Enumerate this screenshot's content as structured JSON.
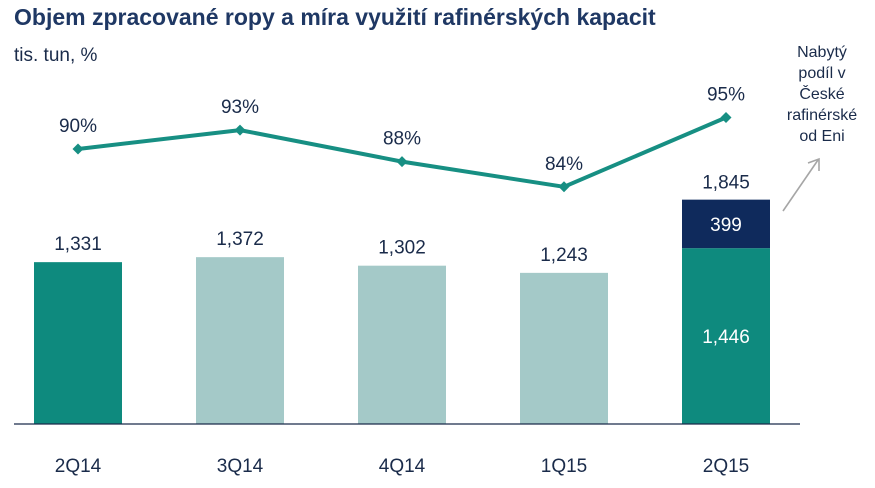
{
  "title": "Objem zpracované ropy a míra využití rafinérských kapacit",
  "subtitle": "tis. tun, %",
  "colors": {
    "highlight_bar": "#0e8a7e",
    "bar": "#a4c9c8",
    "acquired": "#0f2a5c",
    "line": "#178f83",
    "arrow": "#a6a6a6"
  },
  "chart_data": {
    "type": "bar",
    "categories": [
      "2Q14",
      "3Q14",
      "4Q14",
      "1Q15",
      "2Q15"
    ],
    "values": [
      1331,
      1372,
      1302,
      1243,
      1446
    ],
    "value_labels": [
      "1,331",
      "1,372",
      "1,302",
      "1,243",
      "1,446"
    ],
    "highlighted": [
      true,
      false,
      false,
      false,
      true
    ],
    "stack": {
      "category": "2Q15",
      "value": 399,
      "label": "399",
      "total": 1845,
      "total_label": "1,845"
    },
    "line": {
      "values": [
        90,
        93,
        88,
        84,
        95
      ],
      "labels": [
        "90%",
        "93%",
        "88%",
        "84%",
        "95%"
      ]
    },
    "annotation": [
      "Nabytý",
      "podíl v",
      "České",
      "rafinérské",
      "od Eni"
    ]
  }
}
